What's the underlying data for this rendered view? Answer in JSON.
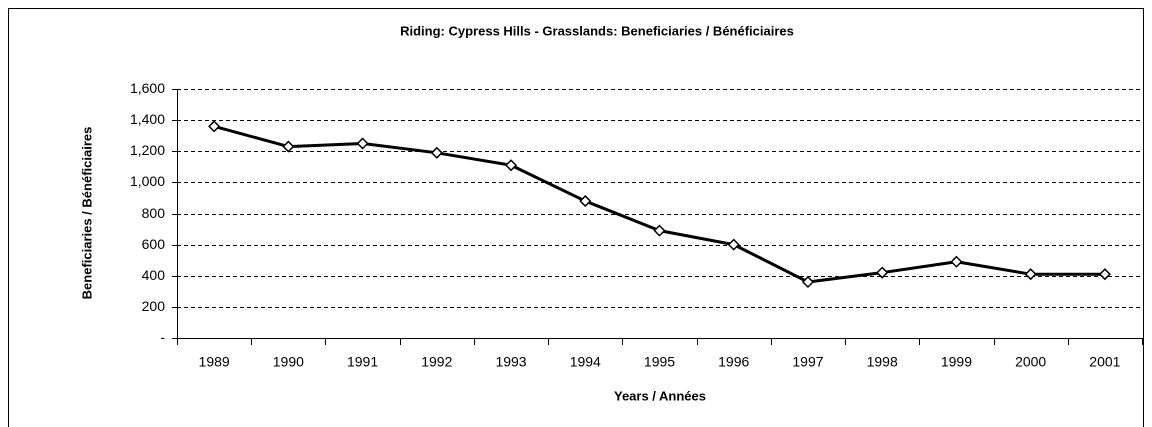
{
  "chart_data": {
    "type": "line",
    "title": "Riding:  Cypress Hills - Grasslands:  Beneficiaries / Bénéficiaires",
    "xlabel": "Years / Années",
    "ylabel": "Beneficiaries / Bénéficiaires",
    "categories": [
      "1989",
      "1990",
      "1991",
      "1992",
      "1993",
      "1994",
      "1995",
      "1996",
      "1997",
      "1998",
      "1999",
      "2000",
      "2001"
    ],
    "series": [
      {
        "name": "Beneficiaries",
        "color": "#000000",
        "values": [
          1360,
          1230,
          1250,
          1190,
          1110,
          880,
          690,
          600,
          360,
          420,
          490,
          410,
          410
        ]
      }
    ],
    "ylim": [
      0,
      1600
    ],
    "yticks": [
      {
        "value": 0,
        "label": "-"
      },
      200,
      400,
      600,
      800,
      {
        "value": 1000,
        "label": "1,000"
      },
      {
        "value": 1200,
        "label": "1,200"
      },
      {
        "value": 1400,
        "label": "1,400"
      },
      {
        "value": 1600,
        "label": "1,600"
      }
    ],
    "grid": true
  }
}
